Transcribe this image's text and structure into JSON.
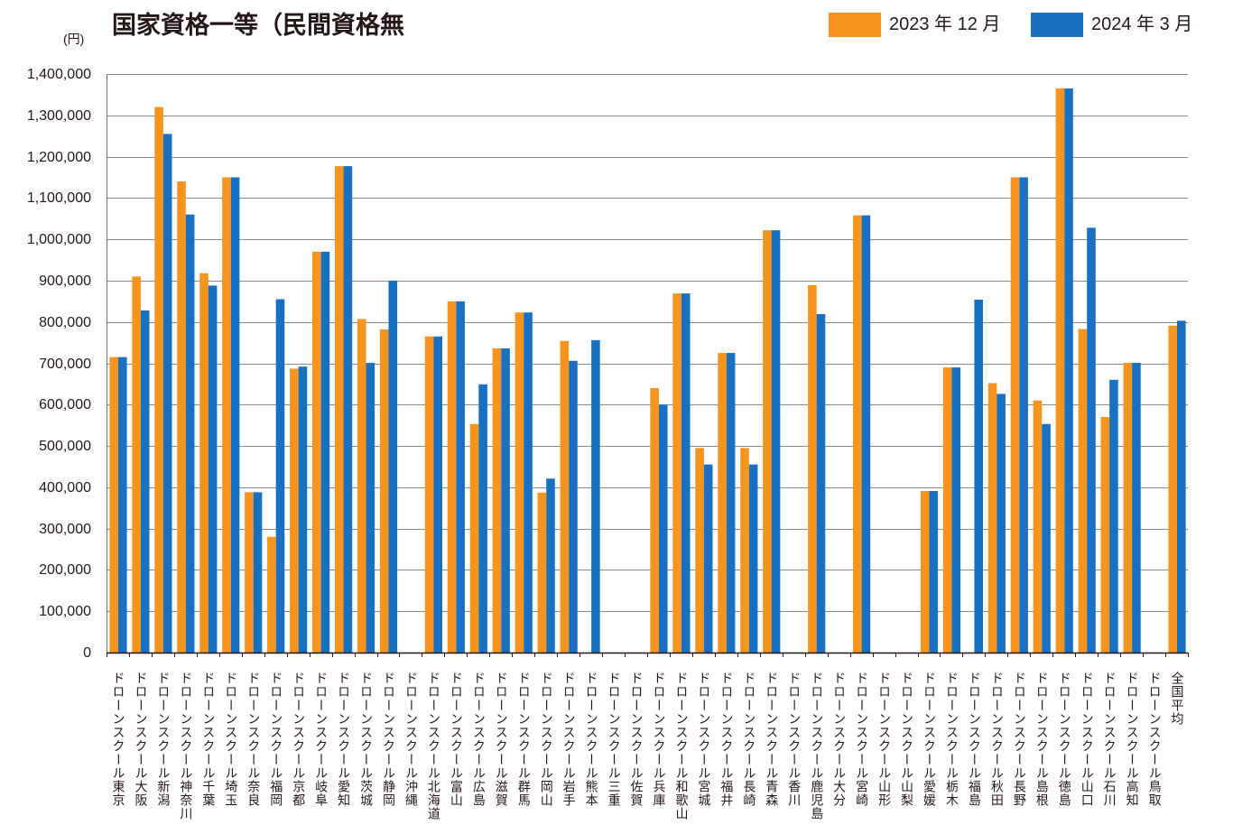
{
  "chart_data": {
    "type": "bar",
    "title": "国家資格一等（民間資格無",
    "ylabel": "(円)",
    "xlabel": "",
    "ylim": [
      0,
      1400000
    ],
    "yticks": [
      0,
      100000,
      200000,
      300000,
      400000,
      500000,
      600000,
      700000,
      800000,
      900000,
      1000000,
      1100000,
      1200000,
      1300000,
      1400000
    ],
    "ytick_labels": [
      "0",
      "100,000",
      "200,000",
      "300,000",
      "400,000",
      "500,000",
      "600,000",
      "700,000",
      "800,000",
      "900,000",
      "1,000,000",
      "1,100,000",
      "1,200,000",
      "1,300,000",
      "1,400,000"
    ],
    "grid": true,
    "legend_position": "top-right",
    "categories": [
      "ドローンスクール東京",
      "ドローンスクール大阪",
      "ドローンスクール新潟",
      "ドローンスクール神奈川",
      "ドローンスクール千葉",
      "ドローンスクール埼玉",
      "ドローンスクール奈良",
      "ドローンスクール福岡",
      "ドローンスクール京都",
      "ドローンスクール岐阜",
      "ドローンスクール愛知",
      "ドローンスクール茨城",
      "ドローンスクール静岡",
      "ドローンスクール沖縄",
      "ドローンスクール北海道",
      "ドローンスクール富山",
      "ドローンスクール広島",
      "ドローンスクール滋賀",
      "ドローンスクール群馬",
      "ドローンスクール岡山",
      "ドローンスクール岩手",
      "ドローンスクール熊本",
      "ドローンスクール三重",
      "ドローンスクール佐賀",
      "ドローンスクール兵庫",
      "ドローンスクール和歌山",
      "ドローンスクール宮城",
      "ドローンスクール福井",
      "ドローンスクール長崎",
      "ドローンスクール青森",
      "ドローンスクール香川",
      "ドローンスクール鹿児島",
      "ドローンスクール大分",
      "ドローンスクール宮崎",
      "ドローンスクール山形",
      "ドローンスクール山梨",
      "ドローンスクール愛媛",
      "ドローンスクール栃木",
      "ドローンスクール福島",
      "ドローンスクール秋田",
      "ドローンスクール長野",
      "ドローンスクール島根",
      "ドローンスクール徳島",
      "ドローンスクール山口",
      "ドローンスクール石川",
      "ドローンスクール高知",
      "ドローンスクール鳥取",
      "全国平均"
    ],
    "series": [
      {
        "name": "2023 年 12 月",
        "color": "#F7941D",
        "values": [
          715000,
          910000,
          1320000,
          1140000,
          918000,
          1150000,
          388000,
          280000,
          687000,
          970000,
          1177000,
          807000,
          782000,
          null,
          765000,
          850000,
          553000,
          736000,
          823000,
          387000,
          754000,
          null,
          null,
          null,
          640000,
          869000,
          495000,
          725000,
          495000,
          1022000,
          null,
          889000,
          null,
          1058000,
          null,
          null,
          391000,
          690000,
          null,
          652000,
          1150000,
          610000,
          1365000,
          783000,
          570000,
          701000,
          null,
          791000
        ]
      },
      {
        "name": "2024 年 3 月",
        "color": "#1A70C0",
        "values": [
          715000,
          828000,
          1255000,
          1060000,
          888000,
          1150000,
          388000,
          855000,
          692000,
          970000,
          1177000,
          701000,
          900000,
          null,
          765000,
          850000,
          649000,
          736000,
          823000,
          421000,
          706000,
          756000,
          null,
          null,
          600000,
          869000,
          455000,
          725000,
          455000,
          1022000,
          null,
          819000,
          null,
          1058000,
          null,
          null,
          391000,
          690000,
          854000,
          626000,
          1150000,
          553000,
          1365000,
          1028000,
          660000,
          701000,
          null,
          803000
        ]
      }
    ]
  }
}
